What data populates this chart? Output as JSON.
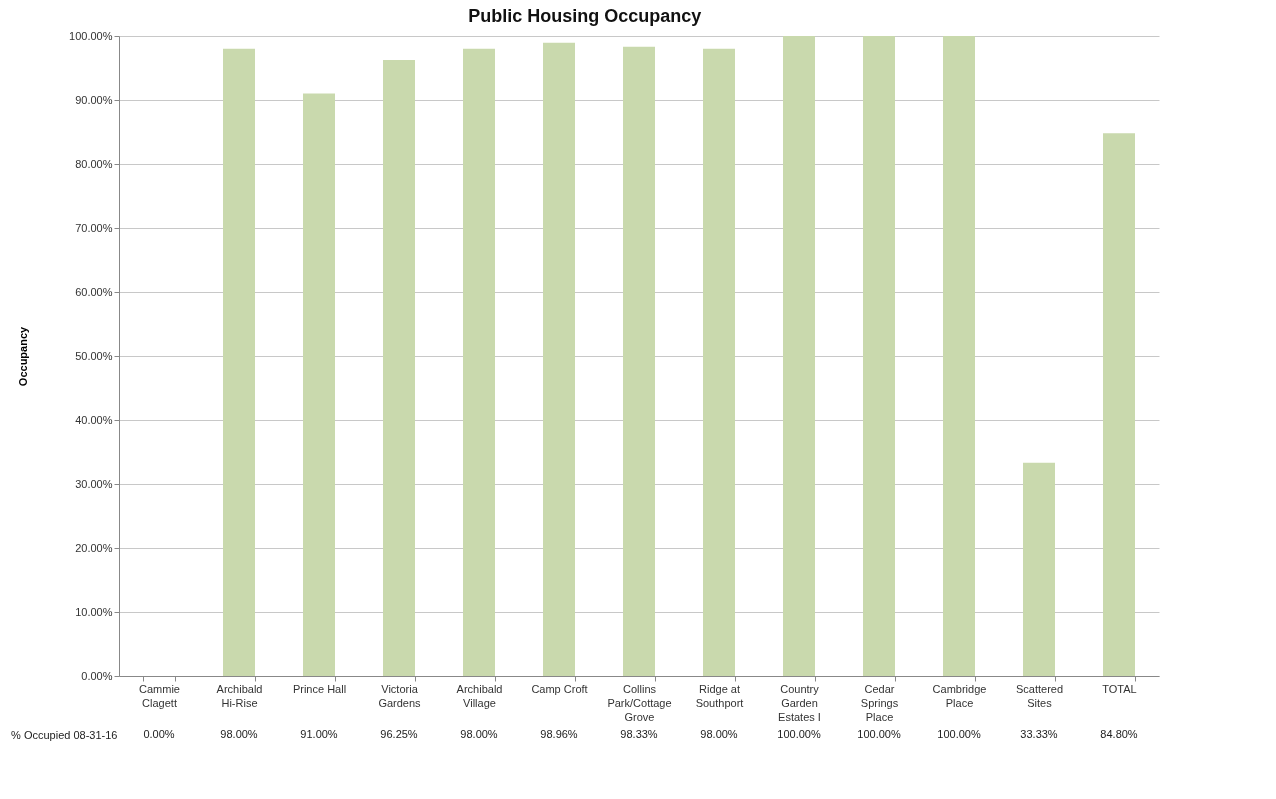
{
  "chart_data": {
    "type": "bar",
    "title": "Public Housing Occupancy",
    "ylabel": "Occupancy",
    "categories": [
      "Cammie Clagett",
      "Archibald Hi-Rise",
      "Prince Hall",
      "Victoria Gardens",
      "Archibald Village",
      "Camp Croft",
      "Collins Park/Cottage Grove",
      "Ridge at Southport",
      "Country Garden Estates I",
      "Cedar Springs Place",
      "Cambridge Place",
      "Scattered Sites",
      "TOTAL"
    ],
    "series": [
      {
        "name": "% Occupied 08-31-16",
        "color": "#c9d9ad",
        "values": [
          0.0,
          98.0,
          91.0,
          96.25,
          98.0,
          98.96,
          98.33,
          98.0,
          100.0,
          100.0,
          100.0,
          33.33,
          84.8
        ],
        "value_labels": [
          "0.00%",
          "98.00%",
          "91.00%",
          "96.25%",
          "98.00%",
          "98.96%",
          "98.33%",
          "98.00%",
          "100.00%",
          "100.00%",
          "100.00%",
          "33.33%",
          "84.80%"
        ]
      }
    ],
    "ylim": [
      0,
      100
    ],
    "yticks": [
      {
        "value": 0,
        "label": "0.00%"
      },
      {
        "value": 10,
        "label": "10.00%"
      },
      {
        "value": 20,
        "label": "20.00%"
      },
      {
        "value": 30,
        "label": "30.00%"
      },
      {
        "value": 40,
        "label": "40.00%"
      },
      {
        "value": 50,
        "label": "50.00%"
      },
      {
        "value": 60,
        "label": "60.00%"
      },
      {
        "value": 70,
        "label": "70.00%"
      },
      {
        "value": 80,
        "label": "80.00%"
      },
      {
        "value": 90,
        "label": "90.00%"
      },
      {
        "value": 100,
        "label": "100.00%"
      }
    ],
    "grid": "y",
    "legend": false
  }
}
